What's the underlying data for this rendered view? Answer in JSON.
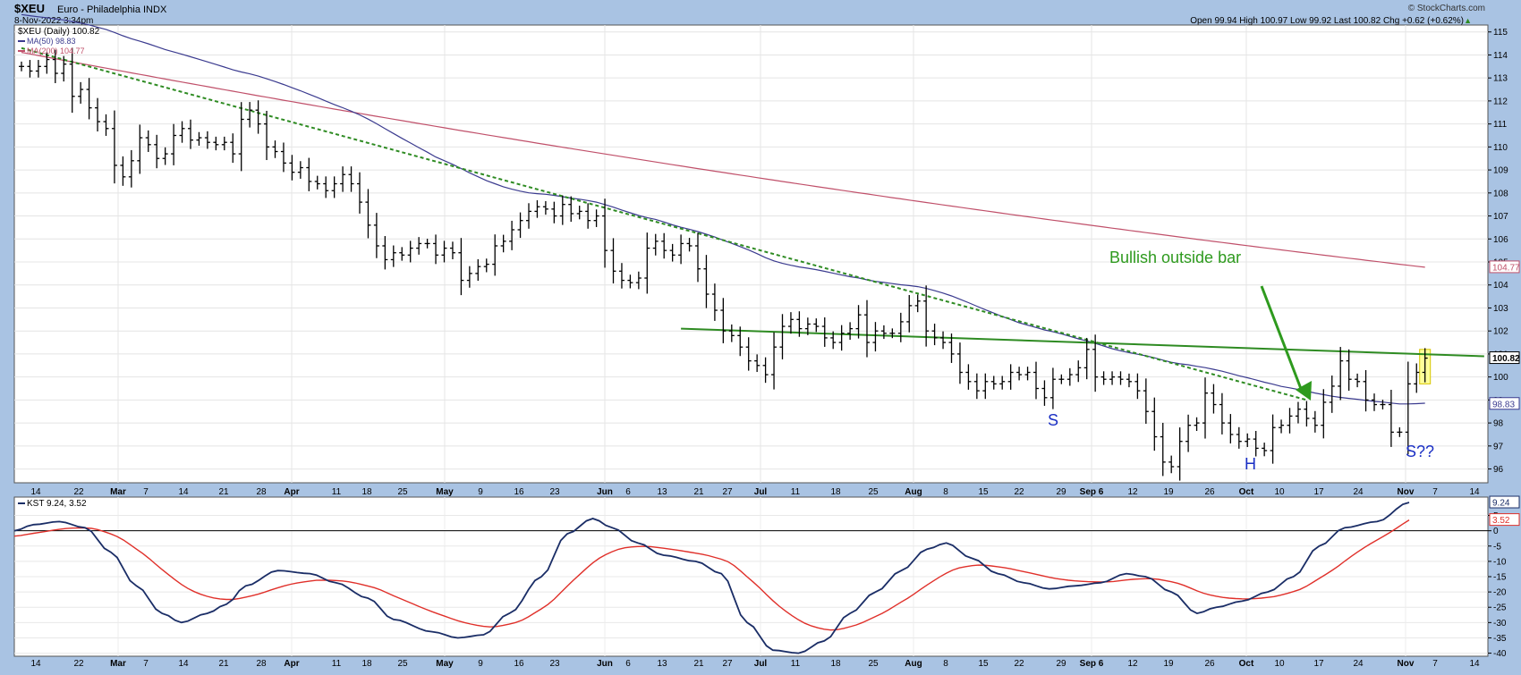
{
  "header": {
    "symbol": "$XEU",
    "name": "Euro - Philadelphia INDX",
    "datetime": "8-Nov-2022 3:34pm",
    "watermark": "© StockCharts.com",
    "quote": "Open 99.94  High 100.97  Low 99.92  Last 100.82  Chg +0.62 (+0.62%)",
    "quote_arrow": "▲"
  },
  "legend": {
    "main": "$XEU (Daily) 100.82",
    "ma50": "MA(50) 98.83",
    "ma200": "MA(200) 104.77",
    "kst": "KST 9.24, 3.52"
  },
  "annotations": {
    "bullish": "Bullish outside bar",
    "s_left": "S",
    "head": "H",
    "s_right": "S??"
  },
  "price_axis_badges": {
    "last": "100.82",
    "ma200": "104.77",
    "ma50": "98.83"
  },
  "kst_axis_badges": {
    "kst": "9.24",
    "signal": "3.52"
  },
  "colors": {
    "background": "#a9c3e3",
    "panel": "#ffffff",
    "price_bars": "#000000",
    "ma50": "#3b3b8f",
    "ma200": "#c0506a",
    "trendline_green": "#2e8b22",
    "kst_line": "#1a2d66",
    "kst_signal": "#e0302a",
    "annotation_blue": "#1a2fc4",
    "highlight": "#ffff99"
  },
  "chart_data": [
    {
      "type": "line",
      "title": "Euro - Philadelphia INDX",
      "ylim": [
        95.4,
        115.3
      ],
      "y_ticks": [
        96,
        97,
        98,
        99,
        100,
        101,
        102,
        103,
        104,
        105,
        106,
        107,
        108,
        109,
        110,
        111,
        112,
        113,
        114,
        115
      ],
      "x_ticks": [
        "14",
        "22",
        "Mar",
        "7",
        "14",
        "21",
        "28",
        "Apr",
        "11",
        "18",
        "25",
        "May",
        "9",
        "16",
        "23",
        "Jun",
        "6",
        "13",
        "21",
        "27",
        "Jul",
        "11",
        "18",
        "25",
        "Aug",
        "8",
        "15",
        "22",
        "29",
        "Sep 6",
        "12",
        "19",
        "26",
        "Oct",
        "10",
        "17",
        "24",
        "Nov",
        "7",
        "14"
      ],
      "series": [
        {
          "name": "$XEU (Daily) 100.82",
          "kind": "hlc-bars",
          "close": [
            113.5,
            113.3,
            113.5,
            113.8,
            113.2,
            113.6,
            112.2,
            112.5,
            111.7,
            111.1,
            110.8,
            109.2,
            108.7,
            109.4,
            110.4,
            110.1,
            109.5,
            109.7,
            110.5,
            110.8,
            110.3,
            110.4,
            110.2,
            110.1,
            110.2,
            109.7,
            111.2,
            111.6,
            111.0,
            110.0,
            109.8,
            109.3,
            108.9,
            109.1,
            108.5,
            108.4,
            108.1,
            108.4,
            108.8,
            108.4,
            107.6,
            106.6,
            105.7,
            105.1,
            105.4,
            105.3,
            105.6,
            105.8,
            105.8,
            105.3,
            105.6,
            105.4,
            104.2,
            104.5,
            104.8,
            104.9,
            105.7,
            105.9,
            106.4,
            106.8,
            107.2,
            107.4,
            107.3,
            107.0,
            107.5,
            107.1,
            107.2,
            106.8,
            107.0,
            105.5,
            104.6,
            104.2,
            104.1,
            104.3,
            105.6,
            105.9,
            105.5,
            105.3,
            105.8,
            105.7,
            104.7,
            103.6,
            102.9,
            102.0,
            101.8,
            101.3,
            100.7,
            100.5,
            100.1,
            101.3,
            102.2,
            102.5,
            102.1,
            102.3,
            102.2,
            101.7,
            101.5,
            101.9,
            102.1,
            102.7,
            101.5,
            102.0,
            101.9,
            101.9,
            102.4,
            103.1,
            103.3,
            102.0,
            101.7,
            101.5,
            101.0,
            100.2,
            99.8,
            99.4,
            99.8,
            99.7,
            99.8,
            100.2,
            100.1,
            100.2,
            99.5,
            99.1,
            99.9,
            99.9,
            100.1,
            100.4,
            101.2,
            100.0,
            99.9,
            100.0,
            99.9,
            99.8,
            99.4,
            98.5,
            97.4,
            96.3,
            96.1,
            97.2,
            97.9,
            98.0,
            99.3,
            98.8,
            98.0,
            97.5,
            97.2,
            97.3,
            96.9,
            96.8,
            97.8,
            97.9,
            98.3,
            98.6,
            98.2,
            97.9,
            98.9,
            99.6,
            100.7,
            99.9,
            99.8,
            99.0,
            98.8,
            98.8,
            97.6,
            97.6,
            99.7,
            100.2,
            100.82
          ]
        },
        {
          "name": "MA(50) 98.83",
          "kind": "line"
        },
        {
          "name": "MA(200) 104.77",
          "kind": "line"
        }
      ],
      "trendlines": [
        {
          "kind": "declining dotted trendline",
          "from": [
            0,
            114.3
          ],
          "to": [
            152,
            99.0
          ]
        },
        {
          "kind": "neckline",
          "from": [
            78,
            102.1
          ],
          "to": [
            173,
            100.9
          ]
        }
      ]
    },
    {
      "type": "line",
      "title": "KST 9.24, 3.52",
      "ylim": [
        -41,
        11
      ],
      "y_ticks": [
        5,
        0,
        -5,
        -10,
        -15,
        -20,
        -25,
        -30,
        -35,
        -40
      ],
      "series": [
        {
          "name": "KST",
          "last": 9.24
        },
        {
          "name": "signal",
          "last": 3.52
        }
      ]
    }
  ]
}
